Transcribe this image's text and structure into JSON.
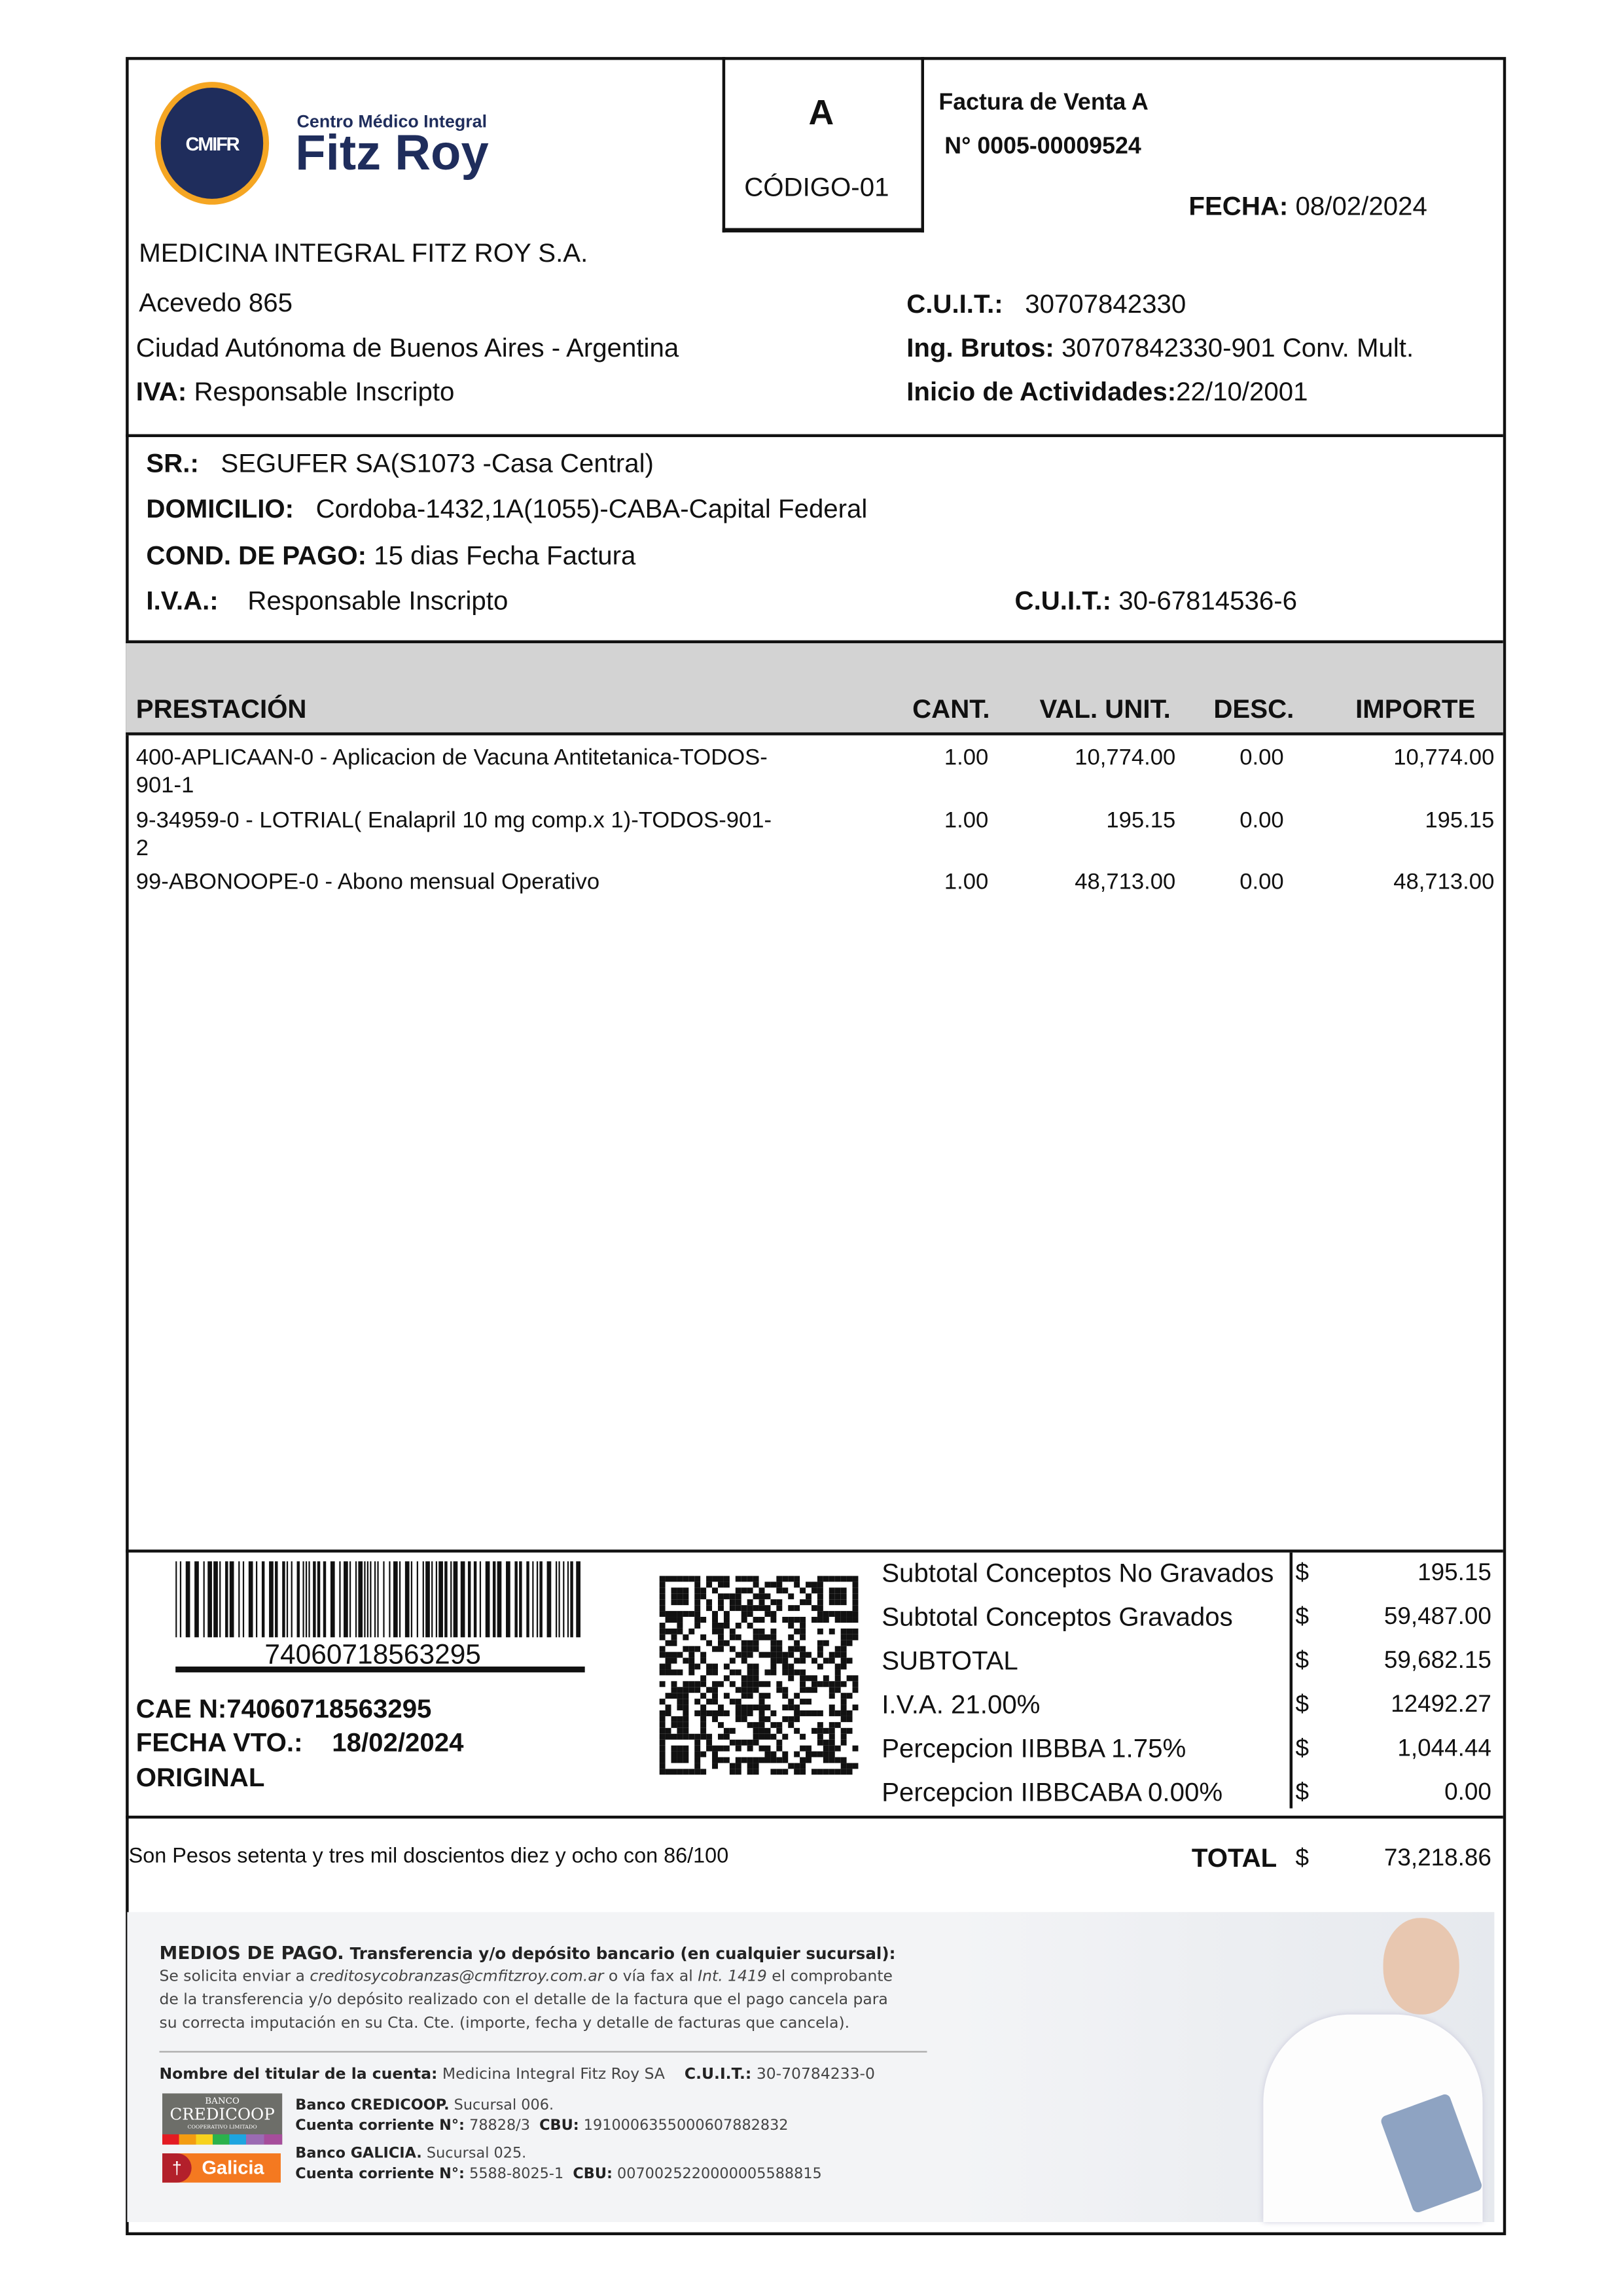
{
  "issuer": {
    "logo_small": "Centro Médico Integral",
    "logo_big": "Fitz Roy",
    "logo_mark": "CMIFR",
    "name": "MEDICINA INTEGRAL FITZ ROY S.A.",
    "address": "Acevedo 865",
    "city": "Ciudad Autónoma de Buenos Aires - Argentina",
    "iva_label": "IVA:",
    "iva_value": "Responsable Inscripto",
    "cuit_label": "C.U.I.T.:",
    "cuit_value": "30707842330",
    "ib_label": "Ing. Brutos:",
    "ib_value": "30707842330-901 Conv. Mult.",
    "inicio_label": "Inicio de Actividades:",
    "inicio_value": "22/10/2001"
  },
  "doc": {
    "letter": "A",
    "code": "CÓDIGO-01",
    "type": "Factura de Venta A",
    "number": "N° 0005-00009524",
    "fecha_label": "FECHA:",
    "fecha_value": "08/02/2024"
  },
  "client": {
    "sr_label": "SR.:",
    "sr_value": "SEGUFER SA(S1073 -Casa Central)",
    "dom_label": "DOMICILIO:",
    "dom_value": "Cordoba-1432,1A(1055)-CABA-Capital Federal",
    "pago_label": "COND. DE PAGO:",
    "pago_value": "15 dias Fecha Factura",
    "iva_label": "I.V.A.:",
    "iva_value": "Responsable Inscripto",
    "cuit_label": "C.U.I.T.:",
    "cuit_value": "30-67814536-6"
  },
  "table": {
    "headers": [
      "PRESTACIÓN",
      "CANT.",
      "VAL. UNIT.",
      "DESC.",
      "IMPORTE"
    ],
    "rows": [
      {
        "desc": "400-APLICAAN-0 - Aplicacion de Vacuna Antitetanica-TODOS-",
        "desc2": "901-1",
        "cant": "1.00",
        "unit": "10,774.00",
        "desc_pct": "0.00",
        "importe": "10,774.00"
      },
      {
        "desc": "9-34959-0 - LOTRIAL( Enalapril 10 mg comp.x 1)-TODOS-901-",
        "desc2": "2",
        "cant": "1.00",
        "unit": "195.15",
        "desc_pct": "0.00",
        "importe": "195.15"
      },
      {
        "desc": "99-ABONOOPE-0 - Abono mensual Operativo",
        "desc2": "",
        "cant": "1.00",
        "unit": "48,713.00",
        "desc_pct": "0.00",
        "importe": "48,713.00"
      }
    ]
  },
  "cae": {
    "barcode_number": "74060718563295",
    "cae_label": "CAE N:",
    "cae_value": "74060718563295",
    "vto_label": "FECHA VTO.:",
    "vto_value": "18/02/2024",
    "copy": "ORIGINAL"
  },
  "totals": {
    "currency": "$",
    "lines": [
      {
        "label": "Subtotal Conceptos No Gravados",
        "value": "195.15"
      },
      {
        "label": "Subtotal Conceptos Gravados",
        "value": "59,487.00"
      },
      {
        "label": "SUBTOTAL",
        "value": "59,682.15"
      },
      {
        "label": "I.V.A. 21.00%",
        "value": "12492.27"
      },
      {
        "label": "Percepcion IIBBBA 1.75%",
        "value": "1,044.44"
      },
      {
        "label": "Percepcion IIBBCABA 0.00%",
        "value": "0.00"
      }
    ],
    "words": "Son Pesos setenta y tres mil doscientos diez y ocho con 86/100",
    "total_label": "TOTAL",
    "total_value": "73,218.86"
  },
  "payment": {
    "title": "MEDIOS DE PAGO.",
    "subtitle": "Transferencia y/o depósito bancario (en cualquier sucursal):",
    "text1": "Se solicita enviar a",
    "email": "creditosycobranzas@cmfitzroy.com.ar",
    "text2": "o vía fax al",
    "int": "Int. 1419",
    "text3": "el comprobante",
    "text4": "de la transferencia y/o depósito realizado con el detalle de la factura que el pago cancela para",
    "text5": "su correcta imputación en su Cta. Cte. (importe, fecha y detalle de facturas que cancela).",
    "holder_label": "Nombre del titular de la cuenta:",
    "holder_value": "Medicina Integral Fitz Roy SA",
    "cuit_label": "C.U.I.T.:",
    "cuit_value": "30-70784233-0",
    "banks": [
      {
        "logo_top": "BANCO",
        "logo": "CREDICOOP",
        "logo_sub": "COOPERATIVO LIMITADO",
        "name": "Banco CREDICOOP.",
        "branch": "Sucursal 006.",
        "acct_label": "Cuenta corriente N°:",
        "acct": "78828/3",
        "cbu_label": "CBU:",
        "cbu": "1910006355000607882832"
      },
      {
        "logo": "Galicia",
        "name": "Banco GALICIA.",
        "branch": "Sucursal 025.",
        "acct_label": "Cuenta corriente N°:",
        "acct": "5588-8025-1",
        "cbu_label": "CBU:",
        "cbu": "0070025220000005588815"
      }
    ],
    "colors": {
      "brand_navy": "#1f2d5c",
      "brand_orange": "#f5a623",
      "panel_bg": "#f3f4f6",
      "galicia": "#f47920",
      "credicoop": "#6d6e69"
    }
  }
}
